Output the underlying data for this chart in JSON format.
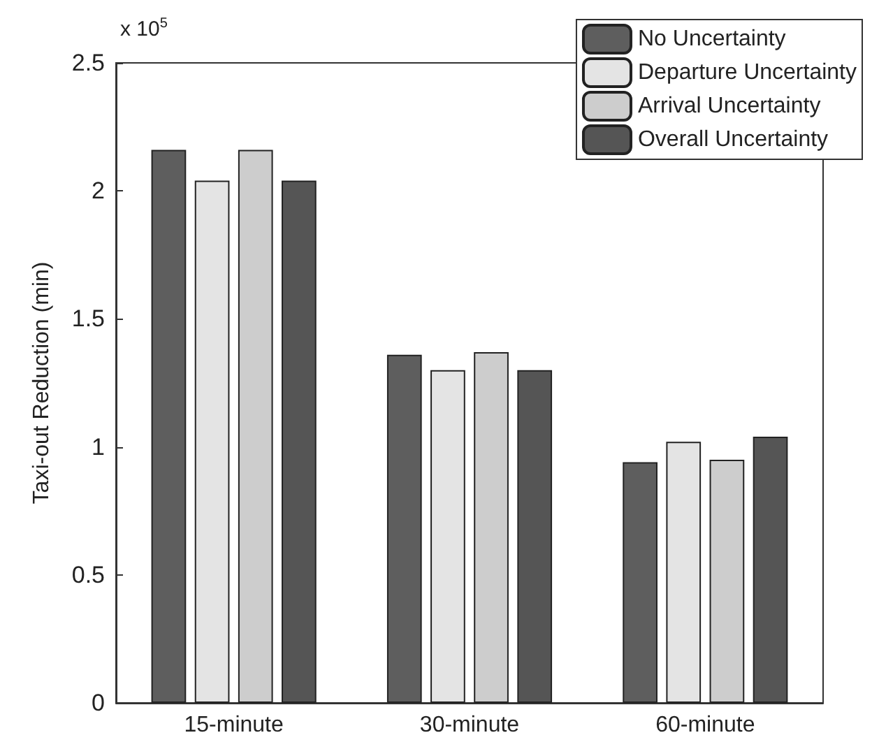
{
  "chart_data": {
    "type": "bar",
    "ylabel": "Taxi-out Reduction (min)",
    "annotations": [
      "x 10$^{5}$"
    ],
    "categories": [
      "15-minute",
      "30-minute",
      "60-minute"
    ],
    "series": [
      {
        "name": "No Uncertainty",
        "color": "#5e5e5e",
        "values": [
          2.16,
          1.36,
          0.94
        ]
      },
      {
        "name": "Departure Uncertainty",
        "color": "#e4e4e4",
        "values": [
          2.04,
          1.3,
          1.02
        ]
      },
      {
        "name": "Arrival Uncertainty",
        "color": "#cdcdcd",
        "values": [
          2.16,
          1.37,
          0.95
        ]
      },
      {
        "name": "Overall Uncertainty",
        "color": "#555555",
        "values": [
          2.04,
          1.3,
          1.04
        ]
      }
    ],
    "ylim": [
      0,
      2.5
    ],
    "yticks": [
      0,
      0.5,
      1,
      1.5,
      2,
      2.5
    ],
    "grid": false,
    "legend": "top right"
  }
}
